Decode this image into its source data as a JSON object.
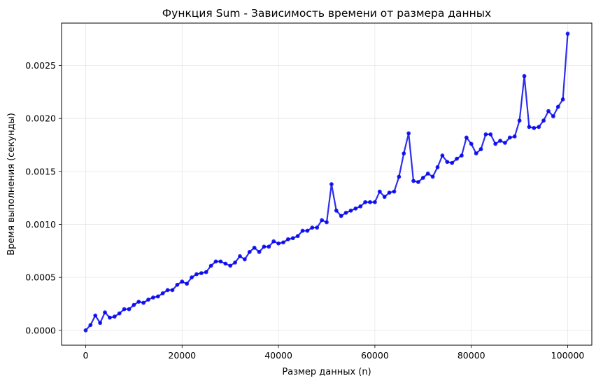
{
  "chart_data": {
    "type": "line",
    "title": "Функция Sum - Зависимость времени от размера данных",
    "xlabel": "Размер данных (n)",
    "ylabel": "Время выполнения (секунды)",
    "xlim": [
      -5000,
      105000
    ],
    "ylim": [
      -0.00014,
      0.0029
    ],
    "grid": true,
    "color": "#0000ee",
    "xticks": [
      {
        "value": 0,
        "label": "0"
      },
      {
        "value": 20000,
        "label": "20000"
      },
      {
        "value": 40000,
        "label": "40000"
      },
      {
        "value": 60000,
        "label": "60000"
      },
      {
        "value": 80000,
        "label": "80000"
      },
      {
        "value": 100000,
        "label": "100000"
      }
    ],
    "yticks": [
      {
        "value": 0,
        "label": "0.0000"
      },
      {
        "value": 0.0005,
        "label": "0.0005"
      },
      {
        "value": 0.001,
        "label": "0.0010"
      },
      {
        "value": 0.0015,
        "label": "0.0015"
      },
      {
        "value": 0.002,
        "label": "0.0020"
      },
      {
        "value": 0.0025,
        "label": "0.0025"
      }
    ],
    "x": [
      0,
      1000,
      2000,
      3000,
      4000,
      5000,
      6000,
      7000,
      8000,
      9000,
      10000,
      11000,
      12000,
      13000,
      14000,
      15000,
      16000,
      17000,
      18000,
      19000,
      20000,
      21000,
      22000,
      23000,
      24000,
      25000,
      26000,
      27000,
      28000,
      29000,
      30000,
      31000,
      32000,
      33000,
      34000,
      35000,
      36000,
      37000,
      38000,
      39000,
      40000,
      41000,
      42000,
      43000,
      44000,
      45000,
      46000,
      47000,
      48000,
      49000,
      50000,
      51000,
      52000,
      53000,
      54000,
      55000,
      56000,
      57000,
      58000,
      59000,
      60000,
      61000,
      62000,
      63000,
      64000,
      65000,
      66000,
      67000,
      68000,
      69000,
      70000,
      71000,
      72000,
      73000,
      74000,
      75000,
      76000,
      77000,
      78000,
      79000,
      80000,
      81000,
      82000,
      83000,
      84000,
      85000,
      86000,
      87000,
      88000,
      89000,
      90000,
      91000,
      92000,
      93000,
      94000,
      95000,
      96000,
      97000,
      98000,
      99000,
      100000
    ],
    "y": [
      0.0,
      5e-05,
      0.00014,
      7e-05,
      0.00017,
      0.00012,
      0.00013,
      0.00016,
      0.0002,
      0.0002,
      0.00024,
      0.00027,
      0.00026,
      0.00029,
      0.00031,
      0.00032,
      0.00035,
      0.00038,
      0.00038,
      0.00043,
      0.00046,
      0.00044,
      0.0005,
      0.00053,
      0.00054,
      0.00055,
      0.00061,
      0.00065,
      0.00065,
      0.00063,
      0.00061,
      0.00064,
      0.0007,
      0.00067,
      0.00074,
      0.00078,
      0.00074,
      0.00079,
      0.00079,
      0.00084,
      0.00082,
      0.00083,
      0.00086,
      0.00087,
      0.00089,
      0.00094,
      0.00094,
      0.00097,
      0.00097,
      0.00104,
      0.00102,
      0.00138,
      0.00113,
      0.00108,
      0.00111,
      0.00113,
      0.00115,
      0.00117,
      0.00121,
      0.00121,
      0.00121,
      0.00131,
      0.00126,
      0.0013,
      0.00131,
      0.00145,
      0.00167,
      0.00186,
      0.00141,
      0.0014,
      0.00144,
      0.00148,
      0.00145,
      0.00154,
      0.00165,
      0.00159,
      0.00158,
      0.00162,
      0.00165,
      0.00182,
      0.00176,
      0.00167,
      0.00171,
      0.00185,
      0.00185,
      0.00176,
      0.00179,
      0.00177,
      0.00182,
      0.00183,
      0.00198,
      0.0024,
      0.00192,
      0.00191,
      0.00192,
      0.00198,
      0.00207,
      0.00202,
      0.00211,
      0.00218,
      0.0028
    ]
  }
}
